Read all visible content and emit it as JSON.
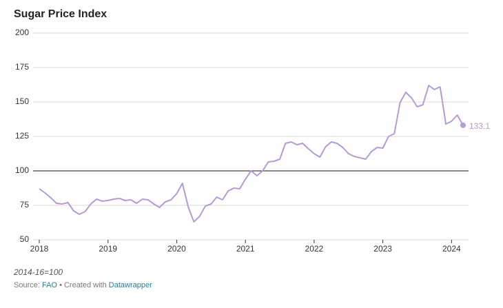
{
  "chart_data": {
    "type": "line",
    "title": "Sugar Price Index",
    "note": "2014-16=100",
    "source": {
      "prefix": "Source:",
      "link": "FAO",
      "middle": "• Created with",
      "credit": "Datawrapper"
    },
    "color": "#b799d6",
    "reference_line": 100,
    "x": [
      2018,
      2018.083,
      2018.167,
      2018.25,
      2018.333,
      2018.417,
      2018.5,
      2018.583,
      2018.667,
      2018.75,
      2018.833,
      2018.917,
      2019,
      2019.083,
      2019.167,
      2019.25,
      2019.333,
      2019.417,
      2019.5,
      2019.583,
      2019.667,
      2019.75,
      2019.833,
      2019.917,
      2020,
      2020.083,
      2020.167,
      2020.25,
      2020.333,
      2020.417,
      2020.5,
      2020.583,
      2020.667,
      2020.75,
      2020.833,
      2020.917,
      2021,
      2021.083,
      2021.167,
      2021.25,
      2021.333,
      2021.417,
      2021.5,
      2021.583,
      2021.667,
      2021.75,
      2021.833,
      2021.917,
      2022,
      2022.083,
      2022.167,
      2022.25,
      2022.333,
      2022.417,
      2022.5,
      2022.583,
      2022.667,
      2022.75,
      2022.833,
      2022.917,
      2023,
      2023.083,
      2023.167,
      2023.25,
      2023.333,
      2023.417,
      2023.5,
      2023.583,
      2023.667,
      2023.75,
      2023.833,
      2023.917,
      2024,
      2024.083,
      2024.167
    ],
    "values": [
      87,
      84,
      80.5,
      76.5,
      76,
      77,
      71,
      68.5,
      70.5,
      76,
      79.5,
      78,
      78.5,
      79.5,
      80,
      78.5,
      79,
      76.5,
      79.5,
      79,
      76,
      73.5,
      77.5,
      79,
      83.5,
      91,
      74,
      63,
      67,
      74.5,
      76,
      81,
      79,
      85.5,
      87.5,
      87,
      94,
      100,
      96.5,
      100,
      106.5,
      107,
      108.5,
      120,
      121,
      119,
      120,
      116,
      112.5,
      110,
      117.5,
      121,
      120,
      117,
      112.5,
      110.5,
      109.5,
      108.5,
      114,
      117,
      116.5,
      125,
      127,
      149.5,
      157,
      153,
      146.5,
      148,
      162,
      159,
      161,
      134,
      136,
      140.5,
      133.1
    ],
    "xlim": [
      2018,
      2024.167
    ],
    "xticks": [
      2018,
      2019,
      2020,
      2021,
      2022,
      2023,
      2024
    ],
    "ylim": [
      50,
      200
    ],
    "yticks": [
      50,
      75,
      100,
      125,
      150,
      175,
      200
    ],
    "grid": true
  }
}
